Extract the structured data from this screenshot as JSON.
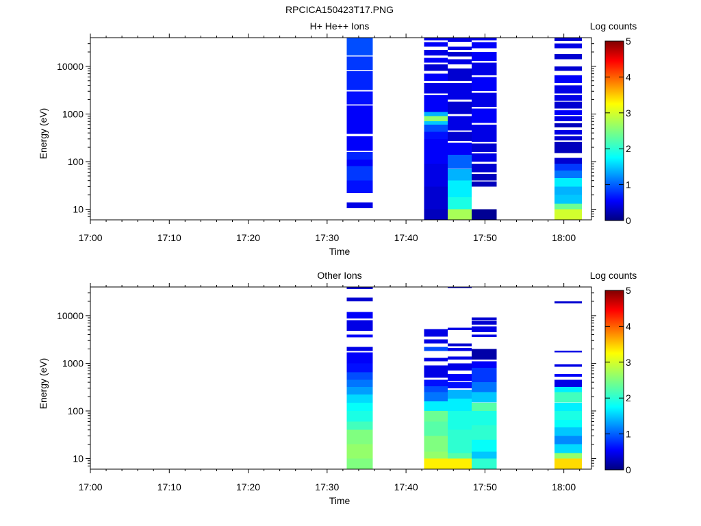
{
  "figure": {
    "title": "RPCICA150423T17.PNG"
  },
  "colorbar": {
    "label": "Log counts",
    "range": [
      0,
      5
    ],
    "ticks": [
      "0",
      "1",
      "2",
      "3",
      "4",
      "5"
    ]
  },
  "chart_data": [
    {
      "type": "heatmap",
      "title": "H+ He++ Ions",
      "xlabel": "Time",
      "ylabel": "Energy (eV)",
      "x_ticks": [
        "17:00",
        "17:10",
        "17:20",
        "17:30",
        "17:40",
        "17:50",
        "18:00"
      ],
      "x_range_minutes": [
        0,
        63.5
      ],
      "y_scale": "log",
      "y_ticks": [
        "10",
        "100",
        "1000",
        "10000"
      ],
      "y_range": [
        6,
        40000
      ],
      "z_label": "Log counts",
      "z_range": [
        0,
        5
      ],
      "columns": [
        {
          "t0": 32.5,
          "t1": 35.8,
          "bins": [
            [
              10.5,
              14,
              0.5
            ],
            [
              22,
              40,
              0.7
            ],
            [
              40,
              80,
              0.9
            ],
            [
              80,
              110,
              0.6
            ],
            [
              110,
              160,
              0.8
            ],
            [
              170,
              340,
              0.6
            ],
            [
              380,
              1500,
              0.6
            ],
            [
              1600,
              3000,
              0.7
            ],
            [
              3200,
              8000,
              0.8
            ],
            [
              8500,
              16000,
              0.9
            ],
            [
              17000,
              40000,
              1.0
            ]
          ]
        },
        {
          "t0": 42.3,
          "t1": 45.3,
          "bins": [
            [
              6,
              10,
              0.3
            ],
            [
              10,
              30,
              0.4
            ],
            [
              30,
              90,
              0.5
            ],
            [
              90,
              140,
              0.6
            ],
            [
              140,
              300,
              0.6
            ],
            [
              300,
              420,
              0.7
            ],
            [
              420,
              600,
              1.0
            ],
            [
              600,
              700,
              1.6
            ],
            [
              700,
              900,
              2.6
            ],
            [
              900,
              1100,
              1.5
            ],
            [
              1100,
              2500,
              0.6
            ],
            [
              2700,
              4500,
              0.5
            ],
            [
              5000,
              7000,
              0.6
            ],
            [
              8000,
              11000,
              0.4
            ],
            [
              12000,
              15000,
              0.6
            ],
            [
              17000,
              22000,
              0.5
            ],
            [
              26000,
              32000,
              0.6
            ],
            [
              35000,
              40000,
              0.5
            ]
          ]
        },
        {
          "t0": 45.3,
          "t1": 48.3,
          "bins": [
            [
              6,
              10,
              2.7
            ],
            [
              10,
              18,
              2.0
            ],
            [
              18,
              40,
              1.8
            ],
            [
              40,
              70,
              1.5
            ],
            [
              70,
              140,
              1.1
            ],
            [
              140,
              250,
              0.6
            ],
            [
              270,
              420,
              0.4
            ],
            [
              450,
              900,
              0.5
            ],
            [
              1000,
              1800,
              0.4
            ],
            [
              2000,
              4500,
              0.5
            ],
            [
              5000,
              9000,
              0.4
            ],
            [
              11000,
              14000,
              0.5
            ],
            [
              16000,
              20000,
              0.4
            ],
            [
              22000,
              26000,
              0.5
            ],
            [
              33000,
              40000,
              0.5
            ]
          ]
        },
        {
          "t0": 48.3,
          "t1": 51.5,
          "bins": [
            [
              6,
              10,
              0.1
            ],
            [
              30,
              38,
              0.3
            ],
            [
              40,
              55,
              0.3
            ],
            [
              60,
              90,
              0.4
            ],
            [
              100,
              150,
              0.5
            ],
            [
              160,
              240,
              0.4
            ],
            [
              260,
              600,
              0.5
            ],
            [
              650,
              1300,
              0.6
            ],
            [
              1400,
              2800,
              0.5
            ],
            [
              3000,
              6000,
              0.6
            ],
            [
              6500,
              12000,
              0.5
            ],
            [
              13000,
              20000,
              0.6
            ],
            [
              24000,
              32000,
              0.6
            ],
            [
              35000,
              40000,
              0.5
            ]
          ]
        },
        {
          "t0": 58.8,
          "t1": 62.3,
          "bins": [
            [
              6,
              10,
              2.9
            ],
            [
              10,
              13,
              2.4
            ],
            [
              13,
              20,
              1.6
            ],
            [
              20,
              30,
              1.5
            ],
            [
              30,
              45,
              1.8
            ],
            [
              45,
              65,
              1.2
            ],
            [
              65,
              90,
              0.9
            ],
            [
              90,
              120,
              0.4
            ],
            [
              150,
              260,
              0.3
            ],
            [
              280,
              340,
              0.4
            ],
            [
              370,
              460,
              0.5
            ],
            [
              520,
              640,
              0.3
            ],
            [
              700,
              900,
              0.5
            ],
            [
              950,
              1200,
              0.6
            ],
            [
              1300,
              1800,
              0.4
            ],
            [
              1900,
              2500,
              0.5
            ],
            [
              2700,
              4000,
              0.5
            ],
            [
              4500,
              6500,
              0.6
            ],
            [
              8000,
              10000,
              0.4
            ],
            [
              14000,
              18000,
              0.4
            ],
            [
              24000,
              30000,
              0.5
            ],
            [
              34000,
              40000,
              0.4
            ]
          ]
        }
      ]
    },
    {
      "type": "heatmap",
      "title": "Other Ions",
      "xlabel": "Time",
      "ylabel": "Energy (eV)",
      "x_ticks": [
        "17:00",
        "17:10",
        "17:20",
        "17:30",
        "17:40",
        "17:50",
        "18:00"
      ],
      "x_range_minutes": [
        0,
        63.5
      ],
      "y_scale": "log",
      "y_ticks": [
        "10",
        "100",
        "1000",
        "10000"
      ],
      "y_range": [
        6,
        40000
      ],
      "z_label": "Log counts",
      "z_range": [
        0,
        5
      ],
      "columns": [
        {
          "t0": 32.5,
          "t1": 35.8,
          "bins": [
            [
              6,
              10,
              2.5
            ],
            [
              10,
              20,
              2.6
            ],
            [
              20,
              40,
              2.5
            ],
            [
              40,
              60,
              2.2
            ],
            [
              60,
              100,
              2.0
            ],
            [
              100,
              150,
              1.9
            ],
            [
              150,
              220,
              1.7
            ],
            [
              220,
              320,
              1.4
            ],
            [
              320,
              450,
              1.2
            ],
            [
              450,
              650,
              1.0
            ],
            [
              650,
              1000,
              0.7
            ],
            [
              1000,
              1700,
              0.6
            ],
            [
              1800,
              2200,
              0.5
            ],
            [
              3500,
              4000,
              0.6
            ],
            [
              4800,
              8000,
              0.5
            ],
            [
              8800,
              12000,
              0.6
            ],
            [
              20000,
              24000,
              0.4
            ],
            [
              36000,
              40000,
              0.4
            ]
          ]
        },
        {
          "t0": 42.3,
          "t1": 45.3,
          "bins": [
            [
              6,
              10,
              3.2
            ],
            [
              10,
              14,
              2.6
            ],
            [
              14,
              30,
              2.5
            ],
            [
              30,
              60,
              2.3
            ],
            [
              60,
              100,
              2.4
            ],
            [
              100,
              160,
              1.8
            ],
            [
              160,
              250,
              1.2
            ],
            [
              250,
              330,
              1.0
            ],
            [
              330,
              450,
              0.7
            ],
            [
              500,
              900,
              0.5
            ],
            [
              1100,
              1300,
              0.5
            ],
            [
              1800,
              2200,
              1.0
            ],
            [
              2600,
              3200,
              0.5
            ],
            [
              3600,
              5200,
              0.5
            ]
          ]
        },
        {
          "t0": 45.3,
          "t1": 48.3,
          "bins": [
            [
              6,
              10,
              3.2
            ],
            [
              10,
              13,
              2.3
            ],
            [
              13,
              40,
              2.1
            ],
            [
              40,
              100,
              2.0
            ],
            [
              100,
              180,
              1.8
            ],
            [
              180,
              280,
              1.5
            ],
            [
              300,
              400,
              0.7
            ],
            [
              420,
              600,
              0.6
            ],
            [
              700,
              1000,
              0.5
            ],
            [
              1200,
              1400,
              0.5
            ],
            [
              1800,
              2100,
              0.5
            ],
            [
              2300,
              2600,
              0.4
            ],
            [
              5000,
              5600,
              0.5
            ],
            [
              38000,
              40000,
              0.4
            ]
          ]
        },
        {
          "t0": 48.3,
          "t1": 51.5,
          "bins": [
            [
              6,
              10,
              2.1
            ],
            [
              10,
              14,
              1.6
            ],
            [
              14,
              25,
              1.9
            ],
            [
              25,
              50,
              2.1
            ],
            [
              50,
              100,
              2.0
            ],
            [
              100,
              150,
              2.3
            ],
            [
              150,
              250,
              1.6
            ],
            [
              250,
              400,
              1.2
            ],
            [
              400,
              800,
              0.9
            ],
            [
              800,
              1100,
              0.6
            ],
            [
              1200,
              2000,
              0.2
            ],
            [
              3600,
              4000,
              0.5
            ],
            [
              4500,
              6000,
              0.5
            ],
            [
              6500,
              7800,
              0.4
            ],
            [
              8000,
              9200,
              0.4
            ]
          ]
        },
        {
          "t0": 58.8,
          "t1": 62.3,
          "bins": [
            [
              6,
              10,
              3.3
            ],
            [
              10,
              13,
              2.6
            ],
            [
              13,
              20,
              1.7
            ],
            [
              20,
              30,
              1.3
            ],
            [
              30,
              45,
              1.6
            ],
            [
              45,
              65,
              1.9
            ],
            [
              65,
              100,
              2.0
            ],
            [
              100,
              150,
              1.8
            ],
            [
              150,
              250,
              2.2
            ],
            [
              250,
              320,
              1.8
            ],
            [
              320,
              450,
              0.5
            ],
            [
              520,
              600,
              0.6
            ],
            [
              850,
              950,
              0.5
            ],
            [
              1700,
              1850,
              0.5
            ],
            [
              18000,
              20000,
              0.4
            ]
          ]
        }
      ]
    }
  ]
}
